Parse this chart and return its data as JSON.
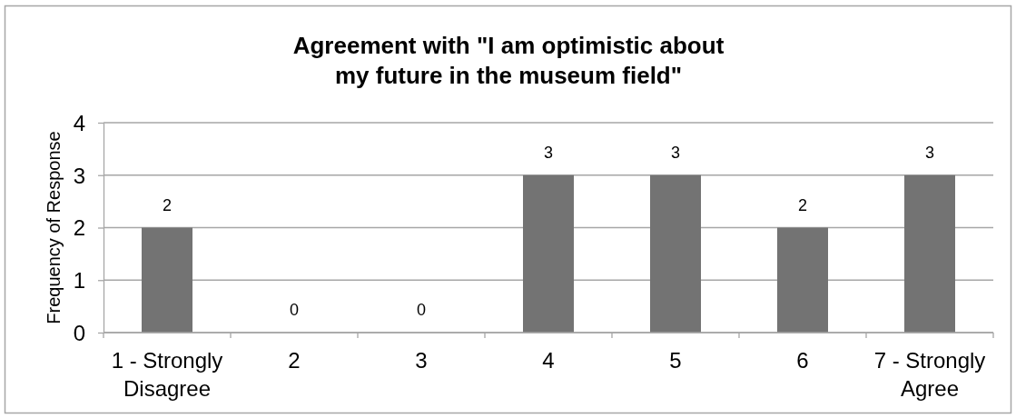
{
  "chart_data": {
    "type": "bar",
    "title": "Agreement with \"I am optimistic about my future in the museum field\"",
    "ylabel": "Frequency of Response",
    "categories": [
      "1 - Strongly Disagree",
      "2",
      "3",
      "4",
      "5",
      "6",
      "7 - Strongly Agree"
    ],
    "values": [
      2,
      0,
      0,
      3,
      3,
      2,
      3
    ],
    "color": "#737373",
    "ylim": [
      0,
      4
    ],
    "yticks": [
      0,
      1,
      2,
      3,
      4
    ],
    "grid": "y",
    "data_labels": true
  }
}
